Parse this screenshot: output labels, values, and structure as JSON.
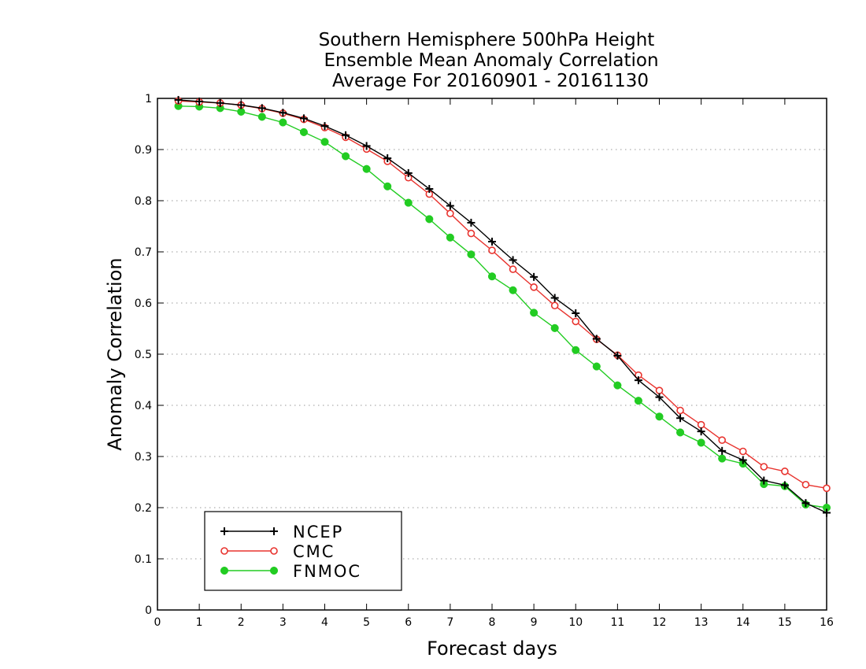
{
  "chart_data": {
    "type": "line",
    "title": [
      "Southern Hemisphere 500hPa Height",
      "Ensemble Mean Anomaly Correlation",
      "Average For 20160901 - 20161130"
    ],
    "xlabel": "Forecast days",
    "ylabel": "Anomaly Correlation",
    "xlim": [
      0,
      16
    ],
    "ylim": [
      0,
      1
    ],
    "x_ticks": [
      "0",
      "1",
      "2",
      "3",
      "4",
      "5",
      "6",
      "7",
      "8",
      "9",
      "10",
      "11",
      "12",
      "13",
      "14",
      "15",
      "16"
    ],
    "y_ticks": [
      "0",
      "0.1",
      "0.2",
      "0.3",
      "0.4",
      "0.5",
      "0.6",
      "0.7",
      "0.8",
      "0.9",
      "1"
    ],
    "grid": true,
    "legend_position": "bottom-left",
    "x": [
      0.5,
      1,
      1.5,
      2,
      2.5,
      3,
      3.5,
      4,
      4.5,
      5,
      5.5,
      6,
      6.5,
      7,
      7.5,
      8,
      8.5,
      9,
      9.5,
      10,
      10.5,
      11,
      11.5,
      12,
      12.5,
      13,
      13.5,
      14,
      14.5,
      15,
      15.5,
      16
    ],
    "series": [
      {
        "name": "NCEP",
        "color": "#000000",
        "marker": "plus",
        "values": [
          0.997,
          0.994,
          0.991,
          0.987,
          0.981,
          0.972,
          0.961,
          0.946,
          0.928,
          0.907,
          0.883,
          0.854,
          0.823,
          0.79,
          0.757,
          0.72,
          0.684,
          0.651,
          0.61,
          0.58,
          0.53,
          0.497,
          0.449,
          0.416,
          0.375,
          0.349,
          0.311,
          0.293,
          0.253,
          0.244,
          0.209,
          0.19
        ]
      },
      {
        "name": "CMC",
        "color": "#e8332e",
        "marker": "open-circle",
        "values": [
          0.995,
          0.993,
          0.991,
          0.987,
          0.98,
          0.971,
          0.959,
          0.943,
          0.924,
          0.901,
          0.877,
          0.845,
          0.813,
          0.775,
          0.736,
          0.703,
          0.666,
          0.631,
          0.595,
          0.564,
          0.529,
          0.498,
          0.459,
          0.429,
          0.39,
          0.362,
          0.332,
          0.31,
          0.28,
          0.271,
          0.245,
          0.238
        ]
      },
      {
        "name": "FNMOC",
        "color": "#22cc22",
        "marker": "filled-circle",
        "values": [
          0.985,
          0.984,
          0.981,
          0.974,
          0.964,
          0.953,
          0.934,
          0.915,
          0.887,
          0.862,
          0.828,
          0.796,
          0.764,
          0.728,
          0.695,
          0.652,
          0.625,
          0.581,
          0.551,
          0.508,
          0.476,
          0.439,
          0.409,
          0.378,
          0.347,
          0.327,
          0.296,
          0.286,
          0.246,
          0.242,
          0.206,
          0.2
        ]
      }
    ]
  }
}
